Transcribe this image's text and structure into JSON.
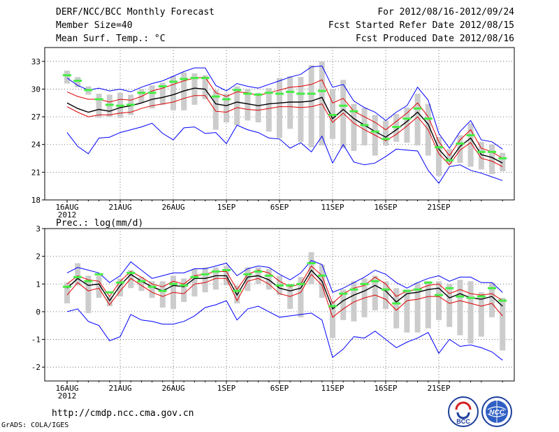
{
  "header": {
    "title": "DERF/NCC/BCC Monthly Forecast",
    "member_size": "Member Size=40",
    "variable": "Mean Surf. Temp.: °C",
    "forecast_period": "For 2012/08/16-2012/09/24",
    "fcst_started": "Fcst Started Refer Date 2012/08/15",
    "fcst_produced": "Fcst Produced Date 2012/08/16"
  },
  "footer": {
    "url": "http://cmdp.ncc.cma.gov.cn",
    "grads_credit": "GrADS: COLA/IGES"
  },
  "logos": {
    "left_label": "BCC",
    "right_label": "NCC"
  },
  "colors": {
    "envelope": "#0000ff",
    "spread": "#e00000",
    "mean": "#000000",
    "box": "#cccccc",
    "marker": "#44ee44"
  },
  "chart_data": [
    {
      "type": "line",
      "title": "Mean Surf. Temp.: °C",
      "x_tick_labels": [
        "16AUG",
        "21AUG",
        "26AUG",
        "1SEP",
        "6SEP",
        "11SEP",
        "16SEP",
        "21SEP"
      ],
      "x_sub_label": "2012",
      "yticks": [
        18,
        21,
        24,
        27,
        30,
        33
      ],
      "ylim": [
        18,
        34.5
      ],
      "grid": true,
      "series": [
        {
          "name": "max",
          "values": [
            31.2,
            30.4,
            29.9,
            30.1,
            29.8,
            30.0,
            29.7,
            30.2,
            30.6,
            30.9,
            31.4,
            31.9,
            32.3,
            32.3,
            30.4,
            29.8,
            30.6,
            30.3,
            30.1,
            30.5,
            30.9,
            31.3,
            31.6,
            32.4,
            32.5,
            30.2,
            30.5,
            28.7,
            28.0,
            27.5,
            26.6,
            27.5,
            28.2,
            30.2,
            28.8,
            25.2,
            23.6,
            25.4,
            26.6,
            24.5,
            24.3,
            23.5
          ]
        },
        {
          "name": "spread_upper",
          "values": [
            29.7,
            29.2,
            28.9,
            28.9,
            28.6,
            28.9,
            28.8,
            29.2,
            29.8,
            30.1,
            30.5,
            30.9,
            31.2,
            31.3,
            29.6,
            29.2,
            29.7,
            29.6,
            29.3,
            29.6,
            29.9,
            30.2,
            30.3,
            30.5,
            31.0,
            28.5,
            29.0,
            27.6,
            27.0,
            26.4,
            25.6,
            26.5,
            27.4,
            28.5,
            27.0,
            24.3,
            22.8,
            24.5,
            25.6,
            23.6,
            23.2,
            22.5
          ]
        },
        {
          "name": "mean",
          "values": [
            28.5,
            27.9,
            27.5,
            27.8,
            27.6,
            28.0,
            28.2,
            28.5,
            28.9,
            29.1,
            29.4,
            29.8,
            30.1,
            30.0,
            28.4,
            28.2,
            28.6,
            28.4,
            28.2,
            28.4,
            28.5,
            28.6,
            28.6,
            28.7,
            29.1,
            26.8,
            27.8,
            26.8,
            26.1,
            25.4,
            24.8,
            25.6,
            26.5,
            27.5,
            26.2,
            23.5,
            22.2,
            23.8,
            24.7,
            22.9,
            22.6,
            22.0
          ]
        },
        {
          "name": "spread_lower",
          "values": [
            28.1,
            27.5,
            27.0,
            27.2,
            27.2,
            27.4,
            27.5,
            27.9,
            28.2,
            28.4,
            28.6,
            29.0,
            29.3,
            29.3,
            27.6,
            27.5,
            28.0,
            27.8,
            27.7,
            27.9,
            28.1,
            28.1,
            28.0,
            28.1,
            28.4,
            26.4,
            27.4,
            26.3,
            25.6,
            25.0,
            24.4,
            25.1,
            26.0,
            27.0,
            25.6,
            23.0,
            21.8,
            23.4,
            24.2,
            22.5,
            22.2,
            21.6
          ]
        },
        {
          "name": "min",
          "values": [
            25.3,
            23.8,
            23.0,
            24.7,
            24.8,
            25.3,
            25.6,
            25.9,
            26.3,
            25.2,
            24.5,
            25.8,
            25.9,
            25.2,
            25.3,
            24.1,
            26.1,
            25.6,
            25.3,
            24.7,
            24.6,
            23.6,
            24.2,
            23.2,
            24.9,
            22.0,
            24.0,
            22.1,
            21.8,
            22.0,
            22.7,
            23.5,
            23.4,
            23.3,
            21.2,
            19.8,
            21.6,
            21.8,
            21.2,
            20.9,
            20.5,
            20.1
          ]
        },
        {
          "name": "box_high",
          "values": [
            32.0,
            31.3,
            30.3,
            29.5,
            29.4,
            29.6,
            29.4,
            30.0,
            30.4,
            30.7,
            31.4,
            31.8,
            31.7,
            31.5,
            29.9,
            29.5,
            30.3,
            30.0,
            29.6,
            30.1,
            31.2,
            31.4,
            31.3,
            32.6,
            33.0,
            30.0,
            31.0,
            28.4,
            28.0,
            27.2,
            26.6,
            27.3,
            28.0,
            29.5,
            28.4,
            24.8,
            23.5,
            25.0,
            26.3,
            24.3,
            24.0,
            23.1
          ]
        },
        {
          "name": "box_low",
          "values": [
            30.6,
            30.2,
            29.4,
            26.9,
            27.0,
            26.9,
            27.2,
            28.5,
            27.9,
            28.3,
            27.7,
            27.7,
            28.3,
            28.9,
            25.6,
            26.4,
            26.1,
            26.6,
            26.4,
            25.4,
            24.7,
            25.7,
            24.3,
            23.7,
            23.9,
            24.6,
            23.6,
            23.3,
            23.9,
            22.8,
            23.9,
            24.3,
            24.2,
            23.9,
            22.8,
            20.6,
            21.9,
            22.0,
            21.6,
            21.3,
            20.8,
            21.1
          ]
        },
        {
          "name": "marker",
          "values": [
            31.5,
            30.9,
            29.9,
            28.9,
            28.3,
            28.2,
            28.3,
            29.6,
            29.6,
            30.3,
            30.8,
            31.1,
            31.2,
            31.2,
            29.2,
            28.9,
            29.9,
            29.5,
            29.4,
            29.6,
            29.5,
            29.7,
            29.5,
            29.5,
            29.8,
            27.2,
            28.2,
            27.6,
            26.1,
            25.4,
            24.6,
            25.9,
            26.8,
            27.9,
            26.8,
            23.7,
            22.3,
            24.1,
            25.0,
            23.2,
            23.2,
            22.5
          ]
        }
      ]
    },
    {
      "type": "line",
      "title": "Prec.: log(mm/d)",
      "x_tick_labels": [
        "16AUG",
        "21AUG",
        "26AUG",
        "1SEP",
        "6SEP",
        "11SEP",
        "16SEP",
        "21SEP"
      ],
      "x_sub_label": "2012",
      "yticks": [
        -2,
        -1,
        0,
        1,
        2,
        3
      ],
      "ylim": [
        -2.5,
        3
      ],
      "grid": true,
      "series": [
        {
          "name": "max",
          "values": [
            1.4,
            1.6,
            1.5,
            1.4,
            1.05,
            1.3,
            1.8,
            1.5,
            1.2,
            1.3,
            1.4,
            1.4,
            1.55,
            1.55,
            1.65,
            1.75,
            1.3,
            1.55,
            1.65,
            1.6,
            1.35,
            1.15,
            1.4,
            1.85,
            1.7,
            0.7,
            0.85,
            1.05,
            1.25,
            1.5,
            1.35,
            1.05,
            0.85,
            1.05,
            1.2,
            1.3,
            1.1,
            1.25,
            1.25,
            1.05,
            1.05,
            0.7
          ]
        },
        {
          "name": "spread_upper",
          "values": [
            1.0,
            1.3,
            1.15,
            1.1,
            0.55,
            1.1,
            1.45,
            1.25,
            1.0,
            0.9,
            1.1,
            1.0,
            1.3,
            1.35,
            1.45,
            1.45,
            0.8,
            1.35,
            1.5,
            1.4,
            1.1,
            0.9,
            1.0,
            1.65,
            1.3,
            0.3,
            0.65,
            0.85,
            0.95,
            1.25,
            1.0,
            0.55,
            0.75,
            0.8,
            0.95,
            1.0,
            0.65,
            0.8,
            0.65,
            0.6,
            0.65,
            0.4
          ]
        },
        {
          "name": "mean",
          "values": [
            0.85,
            1.2,
            0.95,
            1.0,
            0.4,
            0.95,
            1.35,
            1.1,
            0.9,
            0.75,
            0.95,
            0.9,
            1.2,
            1.2,
            1.3,
            1.3,
            0.6,
            1.25,
            1.3,
            1.15,
            0.85,
            0.75,
            0.85,
            1.5,
            1.1,
            0.1,
            0.4,
            0.6,
            0.75,
            0.95,
            0.75,
            0.35,
            0.65,
            0.7,
            0.8,
            0.85,
            0.5,
            0.65,
            0.5,
            0.45,
            0.55,
            0.2
          ]
        },
        {
          "name": "spread_lower",
          "values": [
            0.6,
            1.05,
            0.75,
            0.85,
            0.25,
            0.75,
            1.2,
            0.95,
            0.7,
            0.55,
            0.7,
            0.65,
            1.0,
            1.05,
            1.2,
            1.2,
            0.4,
            1.1,
            1.2,
            1.0,
            0.65,
            0.55,
            0.7,
            1.35,
            0.95,
            -0.2,
            0.1,
            0.35,
            0.5,
            0.6,
            0.45,
            0.05,
            0.4,
            0.45,
            0.55,
            0.55,
            0.3,
            0.4,
            0.3,
            0.2,
            0.3,
            -0.15
          ]
        },
        {
          "name": "min",
          "values": [
            0.0,
            0.1,
            -0.35,
            -0.5,
            -1.05,
            -0.9,
            -0.1,
            -0.3,
            -0.35,
            -0.45,
            -0.45,
            -0.35,
            -0.15,
            0.15,
            0.25,
            0.4,
            -0.3,
            0.1,
            0.2,
            0.0,
            -0.2,
            -0.15,
            -0.1,
            -0.05,
            -0.3,
            -1.65,
            -1.35,
            -0.9,
            -0.95,
            -0.7,
            -1.0,
            -1.3,
            -1.1,
            -0.95,
            -0.75,
            -1.5,
            -1.0,
            -1.25,
            -1.2,
            -1.3,
            -1.45,
            -1.75
          ]
        },
        {
          "name": "box_high",
          "values": [
            1.05,
            1.75,
            1.3,
            1.3,
            0.55,
            1.2,
            1.5,
            1.25,
            1.1,
            1.1,
            1.3,
            1.2,
            1.55,
            1.6,
            1.6,
            1.65,
            0.95,
            1.6,
            1.6,
            1.55,
            1.3,
            1.0,
            1.25,
            2.15,
            1.7,
            0.4,
            0.8,
            1.1,
            1.2,
            1.3,
            1.1,
            0.85,
            0.8,
            1.05,
            1.1,
            1.1,
            1.0,
            1.15,
            1.1,
            0.7,
            1.05,
            0.5
          ]
        },
        {
          "name": "box_low",
          "values": [
            0.3,
            0.95,
            -0.05,
            0.5,
            0.2,
            0.55,
            0.85,
            0.75,
            0.5,
            0.15,
            0.1,
            0.35,
            0.55,
            0.7,
            0.8,
            0.95,
            0.3,
            0.75,
            1.0,
            0.8,
            0.6,
            0.1,
            -0.2,
            1.0,
            0.5,
            -0.95,
            -0.3,
            -0.35,
            -0.2,
            0.05,
            0.1,
            -0.6,
            -0.75,
            -0.75,
            -0.6,
            -0.3,
            -0.55,
            -0.85,
            -1.15,
            -0.9,
            -0.2,
            -1.4
          ]
        },
        {
          "name": "marker",
          "values": [
            0.9,
            1.25,
            1.1,
            1.35,
            0.7,
            1.05,
            1.4,
            1.1,
            0.9,
            0.75,
            1.0,
            0.95,
            1.25,
            1.35,
            1.45,
            1.5,
            0.75,
            1.35,
            1.45,
            1.3,
            0.95,
            0.95,
            1.0,
            1.75,
            1.3,
            0.2,
            0.65,
            0.8,
            1.0,
            1.1,
            0.8,
            0.3,
            0.75,
            0.8,
            1.05,
            0.6,
            0.85,
            0.55,
            0.5,
            0.55,
            0.85,
            0.4
          ]
        }
      ]
    }
  ]
}
